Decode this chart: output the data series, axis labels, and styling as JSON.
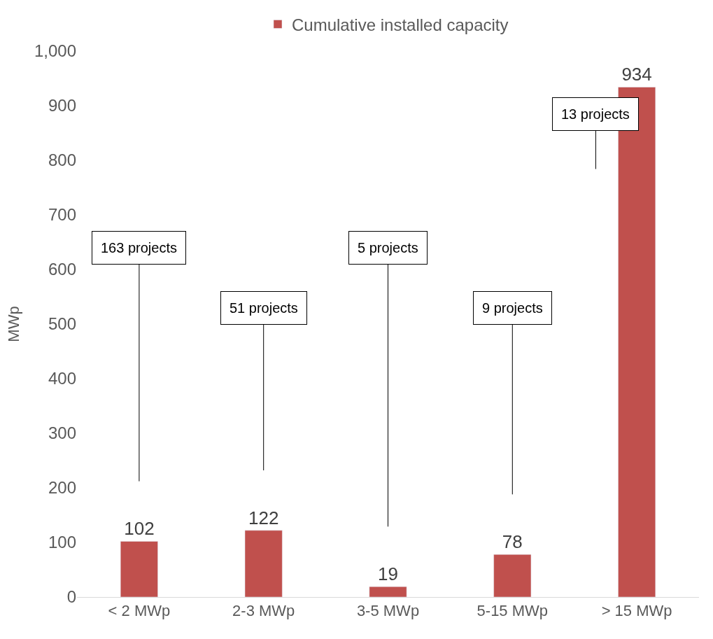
{
  "chart_data": {
    "type": "bar",
    "ylabel": "MWp",
    "categories": [
      "< 2 MWp",
      "2-3 MWp",
      "3-5 MWp",
      "5-15 MWp",
      "> 15 MWp"
    ],
    "series": [
      {
        "name": "Cumulative installed capacity",
        "color": "#c0504d",
        "values": [
          102,
          122,
          19,
          78,
          934
        ]
      }
    ],
    "data_labels": true,
    "ylim": [
      0,
      1000
    ],
    "yticks": [
      0,
      100,
      200,
      300,
      400,
      500,
      600,
      700,
      800,
      900,
      {
        "value": 1000,
        "label": "1,000"
      }
    ],
    "grid": false,
    "legend": "top",
    "annotations": [
      "163 projects",
      "51 projects",
      "5 projects",
      "9 projects",
      "13 projects"
    ]
  }
}
